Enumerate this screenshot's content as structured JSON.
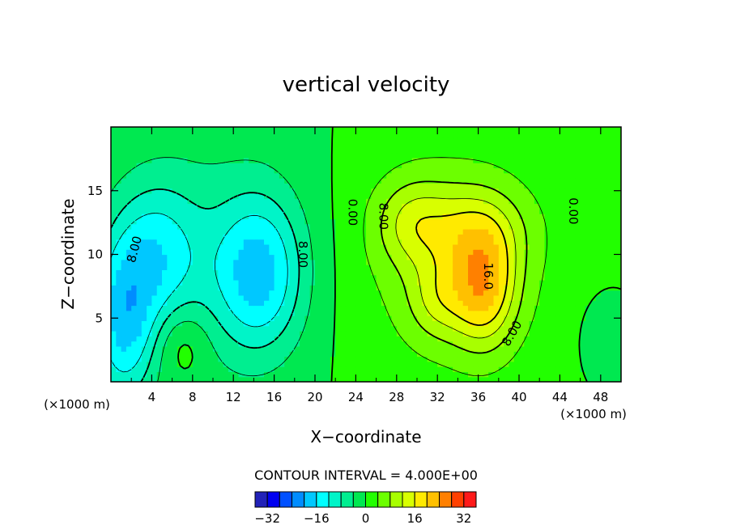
{
  "chart_data": {
    "type": "heatmap",
    "title": "vertical velocity",
    "xlabel": "X−coordinate",
    "ylabel": "Z−coordinate",
    "x_unit": "(×1000 m)",
    "xlim": [
      0,
      50
    ],
    "ylim": [
      0,
      20
    ],
    "x_ticks": [
      4,
      8,
      12,
      16,
      20,
      24,
      28,
      32,
      36,
      40,
      44,
      48
    ],
    "y_ticks": [
      5,
      10,
      15
    ],
    "x_tick_labels": [
      "4",
      "8",
      "12",
      "16",
      "20",
      "24",
      "28",
      "32",
      "36",
      "40",
      "44",
      "48"
    ],
    "y_tick_labels": [
      "5",
      "10",
      "15"
    ],
    "contour_interval_text": "CONTOUR INTERVAL = 4.000E+00",
    "contour_interval": 4,
    "contour_labels": [
      {
        "text": "8.00",
        "x": 2.3,
        "y": 10.4,
        "rot": -75
      },
      {
        "text": "8.00",
        "x": 18.8,
        "y": 10.0,
        "rot": 90
      },
      {
        "text": "0.00",
        "x": 23.7,
        "y": 13.3,
        "rot": 90
      },
      {
        "text": "8.00",
        "x": 26.7,
        "y": 13.0,
        "rot": 90
      },
      {
        "text": "0.00",
        "x": 45.3,
        "y": 13.4,
        "rot": 90
      },
      {
        "text": "16.0",
        "x": 37.0,
        "y": 8.3,
        "rot": 90
      },
      {
        "text": "8.00",
        "x": 39.3,
        "y": 3.8,
        "rot": -60
      }
    ],
    "colorbar": {
      "levels": [
        -36,
        -32,
        -28,
        -24,
        -20,
        -16,
        -12,
        -8,
        -4,
        0,
        4,
        8,
        12,
        16,
        20,
        24,
        28,
        32,
        36
      ],
      "tick_values": [
        -32,
        -16,
        0,
        16,
        32
      ],
      "tick_labels": [
        "−32",
        "−16",
        "0",
        "16",
        "32"
      ],
      "colors": [
        "#7a00c8",
        "#2222b8",
        "#0000f0",
        "#0050ff",
        "#008cff",
        "#00c8ff",
        "#00ffff",
        "#00f4c8",
        "#00ee90",
        "#00e850",
        "#22ff00",
        "#6cff00",
        "#a8ff00",
        "#d8ff00",
        "#ffea00",
        "#ffc000",
        "#ff8000",
        "#ff4000",
        "#ff1a1a",
        "#ff6060",
        "#ffa0a0"
      ]
    },
    "features": [
      {
        "kind": "updraft",
        "x": 36.5,
        "y": 7.5,
        "sx": 2.2,
        "sy": 3.2,
        "amp": 17
      },
      {
        "kind": "updraft",
        "x": 35.5,
        "y": 12.0,
        "sx": 3.6,
        "sy": 2.4,
        "amp": 8
      },
      {
        "kind": "updraft",
        "x": 29.5,
        "y": 12.5,
        "sx": 2.6,
        "sy": 2.4,
        "amp": 8
      },
      {
        "kind": "updraft",
        "x": 32.0,
        "y": 6.5,
        "sx": 2.0,
        "sy": 2.2,
        "amp": 7
      },
      {
        "kind": "updraft",
        "x": 33.5,
        "y": 9.5,
        "sx": 7.0,
        "sy": 6.5,
        "amp": 7
      },
      {
        "kind": "downdraft",
        "x": 1.2,
        "y": 4.5,
        "sx": 2.2,
        "sy": 4.5,
        "amp": -15
      },
      {
        "kind": "downdraft",
        "x": 4.5,
        "y": 10.0,
        "sx": 3.0,
        "sy": 4.0,
        "amp": -11
      },
      {
        "kind": "downdraft",
        "x": 14.5,
        "y": 8.5,
        "sx": 3.0,
        "sy": 4.2,
        "amp": -15
      },
      {
        "kind": "downdraft",
        "x": 10.0,
        "y": 10.0,
        "sx": 7.0,
        "sy": 7.0,
        "amp": -5
      },
      {
        "kind": "updraft",
        "x": 7.0,
        "y": 3.0,
        "sx": 1.8,
        "sy": 2.0,
        "amp": 5
      },
      {
        "kind": "downdraft",
        "x": 48.5,
        "y": 3.5,
        "sx": 1.5,
        "sy": 2.0,
        "amp": -4
      }
    ]
  }
}
